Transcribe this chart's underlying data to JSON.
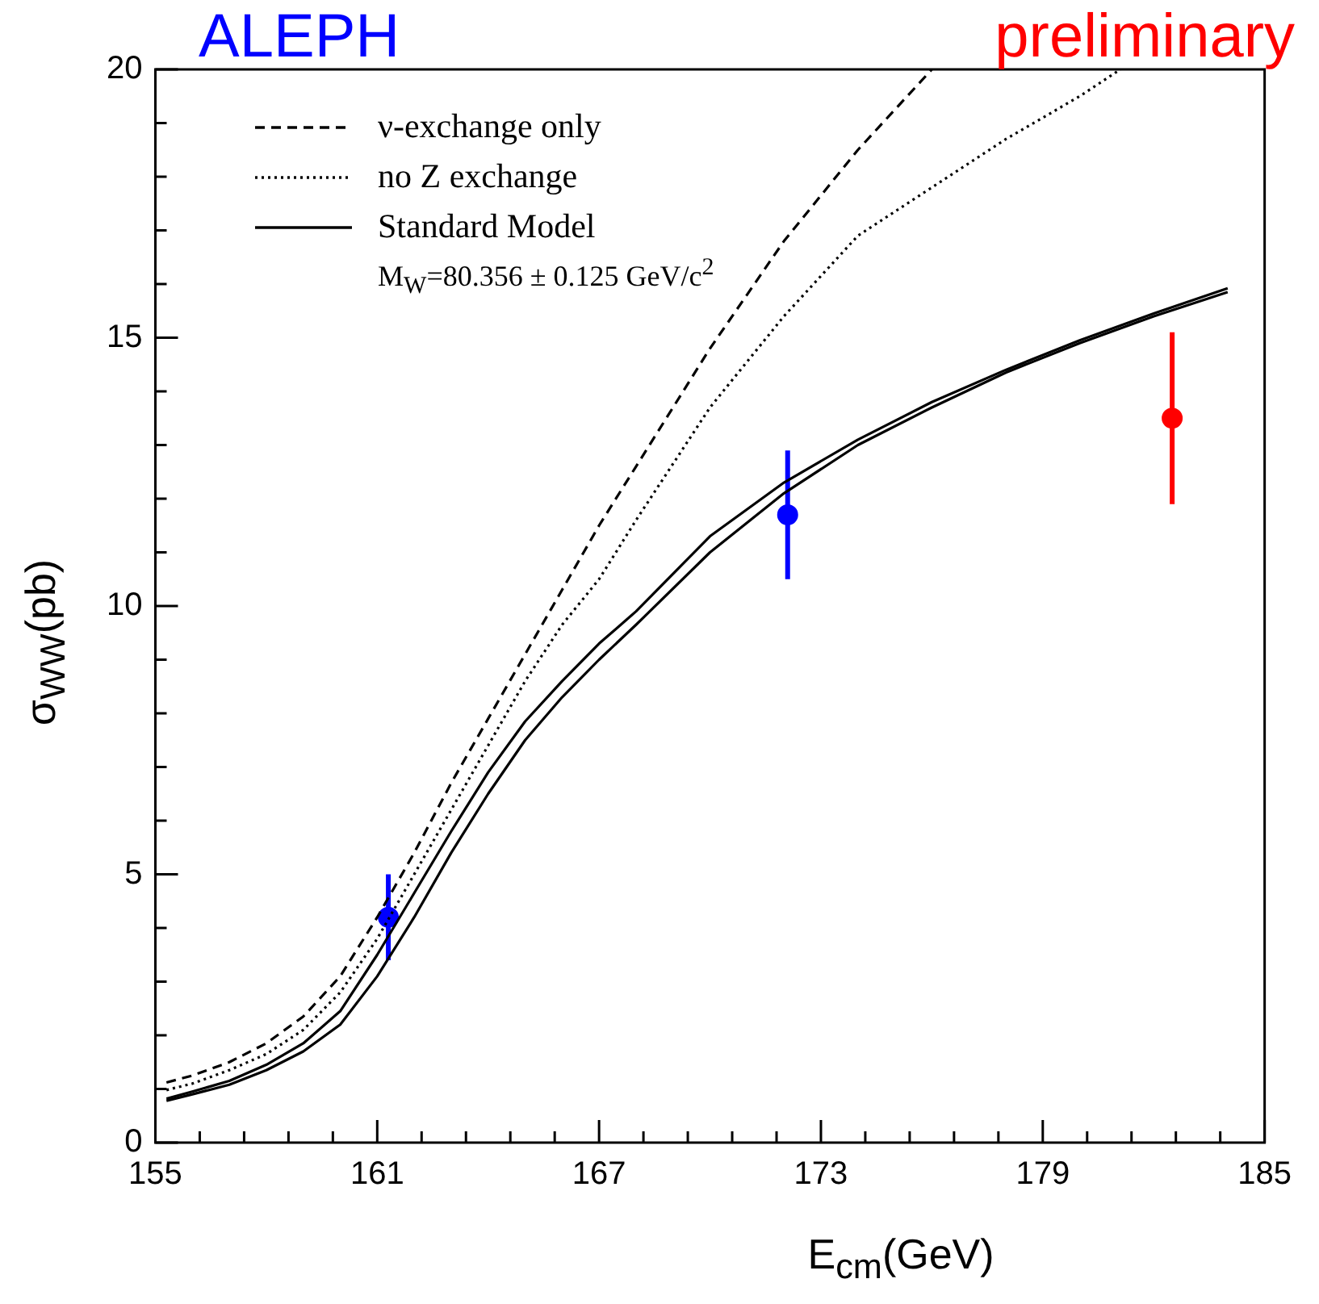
{
  "chart_data": {
    "type": "line",
    "title": "ALEPH",
    "xlabel": "E$_{cm}$(GeV)",
    "ylabel": "σ$_{WW}$(pb)",
    "xlim": [
      155,
      185
    ],
    "ylim": [
      0,
      20
    ],
    "xticks": [
      155,
      {
        "value": 156.2,
        "label": null
      },
      {
        "value": 157.4,
        "label": null
      },
      {
        "value": 158.6,
        "label": null
      },
      {
        "value": 159.8,
        "label": null
      },
      161,
      {
        "value": 162.2,
        "label": null
      },
      {
        "value": 163.4,
        "label": null
      },
      {
        "value": 164.6,
        "label": null
      },
      {
        "value": 165.8,
        "label": null
      },
      167,
      {
        "value": 168.2,
        "label": null
      },
      {
        "value": 169.4,
        "label": null
      },
      {
        "value": 170.6,
        "label": null
      },
      {
        "value": 171.8,
        "label": null
      },
      173,
      {
        "value": 174.2,
        "label": null
      },
      {
        "value": 175.4,
        "label": null
      },
      {
        "value": 176.6,
        "label": null
      },
      {
        "value": 177.8,
        "label": null
      },
      179,
      {
        "value": 180.2,
        "label": null
      },
      {
        "value": 181.4,
        "label": null
      },
      {
        "value": 182.6,
        "label": null
      },
      {
        "value": 183.8,
        "label": null
      },
      185
    ],
    "yticks": [
      0,
      {
        "value": 1,
        "label": null
      },
      {
        "value": 2,
        "label": null
      },
      {
        "value": 3,
        "label": null
      },
      {
        "value": 4,
        "label": null
      },
      5,
      {
        "value": 6,
        "label": null
      },
      {
        "value": 7,
        "label": null
      },
      {
        "value": 8,
        "label": null
      },
      {
        "value": 9,
        "label": null
      },
      10,
      {
        "value": 11,
        "label": null
      },
      {
        "value": 12,
        "label": null
      },
      {
        "value": 13,
        "label": null
      },
      {
        "value": 14,
        "label": null
      },
      15,
      {
        "value": 16,
        "label": null
      },
      {
        "value": 17,
        "label": null
      },
      {
        "value": 18,
        "label": null
      },
      {
        "value": 19,
        "label": null
      },
      20
    ],
    "grid": false,
    "legend": "top left",
    "annotations": [
      "preliminary",
      "M$_{W}$=80.356 ± 0.125 GeV/c$^{2}$"
    ],
    "series": [
      {
        "name": "ν-exchange only",
        "line_style": "dashed",
        "color": "#000000",
        "x": [
          155.3,
          156,
          157,
          158,
          159,
          160,
          161,
          162,
          163,
          164,
          165,
          166,
          167,
          168,
          170,
          172,
          174,
          176
        ],
        "values": [
          1.12,
          1.25,
          1.5,
          1.85,
          2.35,
          3.1,
          4.2,
          5.4,
          6.7,
          7.9,
          9.1,
          10.3,
          11.5,
          12.6,
          14.8,
          16.8,
          18.5,
          20
        ]
      },
      {
        "name": "no Z exchange",
        "line_style": "dotted",
        "color": "#000000",
        "x": [
          155.3,
          156,
          157,
          158,
          159,
          160,
          161,
          162,
          163,
          164,
          165,
          166,
          167,
          168,
          170,
          172,
          174,
          176,
          178,
          180,
          181.1
        ],
        "values": [
          0.98,
          1.1,
          1.35,
          1.65,
          2.1,
          2.8,
          3.8,
          5.0,
          6.2,
          7.4,
          8.6,
          9.65,
          10.5,
          11.6,
          13.7,
          15.4,
          16.9,
          17.8,
          18.7,
          19.5,
          20
        ]
      },
      {
        "name": "Standard Model",
        "line_style": "solid",
        "color": "#000000",
        "x": [
          155.3,
          156,
          157,
          158,
          159,
          160,
          161,
          162,
          163,
          164,
          165,
          166,
          167,
          168,
          170,
          172,
          174,
          176,
          178,
          180,
          182,
          184
        ],
        "values": [
          0.82,
          0.95,
          1.15,
          1.45,
          1.85,
          2.45,
          3.5,
          4.65,
          5.8,
          6.9,
          7.85,
          8.6,
          9.3,
          9.9,
          11.3,
          12.3,
          13.1,
          13.8,
          14.4,
          14.95,
          15.45,
          15.92
        ]
      },
      {
        "line_style": "solid",
        "color": "#000000",
        "x": [
          155.3,
          156,
          157,
          158,
          159,
          160,
          161,
          162,
          163,
          164,
          165,
          166,
          167,
          168,
          170,
          172,
          174,
          176,
          178,
          180,
          182,
          184
        ],
        "values": [
          0.78,
          0.9,
          1.08,
          1.35,
          1.7,
          2.2,
          3.1,
          4.2,
          5.4,
          6.5,
          7.5,
          8.3,
          9.0,
          9.65,
          11.0,
          12.1,
          13.0,
          13.7,
          14.35,
          14.9,
          15.4,
          15.85
        ]
      },
      {
        "type": "scatter",
        "marker": "circle",
        "x": [
          161.3,
          172.1,
          182.5
        ],
        "values": [
          4.2,
          11.7,
          13.5
        ],
        "errors": [
          0.8,
          1.2,
          1.6
        ],
        "colors": [
          "#0000ff",
          "#0000ff",
          "#ff0000"
        ]
      }
    ]
  }
}
